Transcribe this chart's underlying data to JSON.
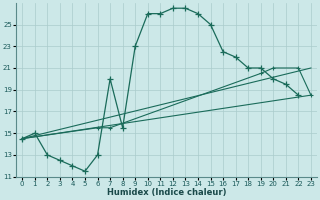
{
  "xlabel": "Humidex (Indice chaleur)",
  "bg_color": "#cce8e8",
  "grid_color": "#aacccc",
  "line_color": "#1a6b5a",
  "xlim": [
    -0.5,
    23.5
  ],
  "ylim": [
    11,
    27
  ],
  "yticks": [
    11,
    13,
    15,
    17,
    19,
    21,
    23,
    25
  ],
  "xticks": [
    0,
    1,
    2,
    3,
    4,
    5,
    6,
    7,
    8,
    9,
    10,
    11,
    12,
    13,
    14,
    15,
    16,
    17,
    18,
    19,
    20,
    21,
    22,
    23
  ],
  "curve1_x": [
    0,
    1,
    2,
    3,
    4,
    5,
    6,
    7,
    8,
    9,
    10,
    11,
    12,
    13,
    14,
    15,
    16,
    17,
    18,
    19,
    20,
    21,
    22
  ],
  "curve1_y": [
    14.5,
    15.0,
    13.0,
    12.5,
    12.0,
    11.5,
    13.0,
    20.0,
    15.5,
    23.0,
    26.0,
    26.0,
    26.5,
    26.5,
    26.0,
    25.0,
    22.5,
    22.0,
    21.0,
    21.0,
    20.0,
    19.5,
    18.5
  ],
  "curve2_x": [
    0,
    6,
    7,
    19,
    20,
    22,
    23
  ],
  "curve2_y": [
    14.5,
    15.5,
    15.5,
    20.5,
    21.0,
    21.0,
    18.5
  ],
  "curve3_x": [
    0,
    23
  ],
  "curve3_y": [
    14.5,
    18.5
  ],
  "curve4_x": [
    0,
    23
  ],
  "curve4_y": [
    14.5,
    21.0
  ]
}
